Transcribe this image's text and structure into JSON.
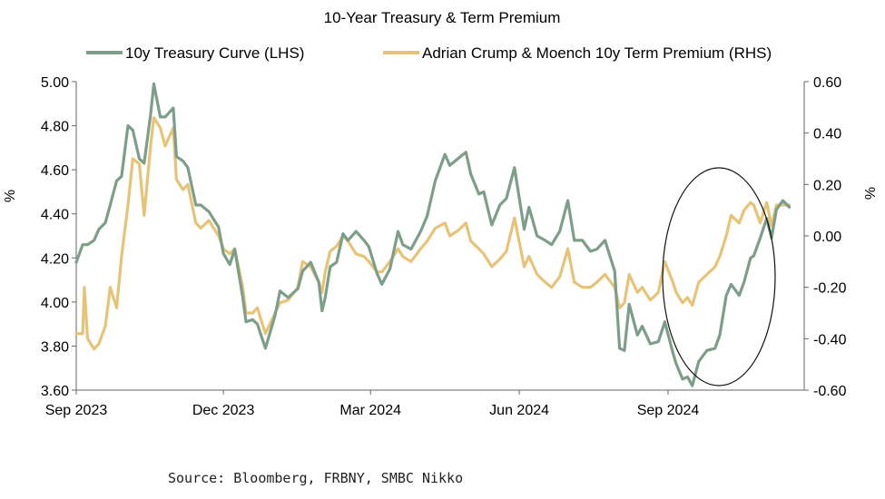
{
  "chart_data": {
    "type": "line",
    "title": "10-Year Treasury & Term Premium",
    "ylabel_left": "%",
    "ylabel_right": "%",
    "ylim_left": [
      3.6,
      5.0
    ],
    "ylim_right": [
      -0.6,
      0.6
    ],
    "yticks_left": [
      "5.00",
      "4.80",
      "4.60",
      "4.40",
      "4.20",
      "4.00",
      "3.80",
      "3.60"
    ],
    "yticks_right": [
      "0.60",
      "0.40",
      "0.20",
      "0.00",
      "-0.20",
      "-0.40",
      "-0.60"
    ],
    "xticks": [
      "Sep 2023",
      "Dec 2023",
      "Mar 2024",
      "Jun 2024",
      "Sep 2024"
    ],
    "legend_position": "top",
    "series": [
      {
        "name": "10y Treasury Curve (LHS)",
        "axis": "left",
        "color": "#7d9e89",
        "points": [
          [
            "2023-09-01",
            4.18
          ],
          [
            "2023-09-05",
            4.26
          ],
          [
            "2023-09-08",
            4.26
          ],
          [
            "2023-09-12",
            4.28
          ],
          [
            "2023-09-15",
            4.33
          ],
          [
            "2023-09-19",
            4.36
          ],
          [
            "2023-09-22",
            4.44
          ],
          [
            "2023-09-26",
            4.55
          ],
          [
            "2023-09-29",
            4.57
          ],
          [
            "2023-10-03",
            4.8
          ],
          [
            "2023-10-06",
            4.78
          ],
          [
            "2023-10-10",
            4.65
          ],
          [
            "2023-10-13",
            4.63
          ],
          [
            "2023-10-17",
            4.85
          ],
          [
            "2023-10-19",
            4.99
          ],
          [
            "2023-10-23",
            4.84
          ],
          [
            "2023-10-26",
            4.84
          ],
          [
            "2023-10-31",
            4.88
          ],
          [
            "2023-11-02",
            4.66
          ],
          [
            "2023-11-06",
            4.64
          ],
          [
            "2023-11-09",
            4.61
          ],
          [
            "2023-11-14",
            4.44
          ],
          [
            "2023-11-17",
            4.44
          ],
          [
            "2023-11-22",
            4.41
          ],
          [
            "2023-11-28",
            4.34
          ],
          [
            "2023-12-01",
            4.22
          ],
          [
            "2023-12-05",
            4.17
          ],
          [
            "2023-12-08",
            4.24
          ],
          [
            "2023-12-13",
            4.02
          ],
          [
            "2023-12-15",
            3.91
          ],
          [
            "2023-12-19",
            3.92
          ],
          [
            "2023-12-22",
            3.9
          ],
          [
            "2023-12-27",
            3.79
          ],
          [
            "2024-01-02",
            3.94
          ],
          [
            "2024-01-05",
            4.05
          ],
          [
            "2024-01-10",
            4.02
          ],
          [
            "2024-01-16",
            4.06
          ],
          [
            "2024-01-19",
            4.14
          ],
          [
            "2024-01-24",
            4.18
          ],
          [
            "2024-01-29",
            4.09
          ],
          [
            "2024-01-31",
            3.96
          ],
          [
            "2024-02-02",
            4.02
          ],
          [
            "2024-02-05",
            4.16
          ],
          [
            "2024-02-09",
            4.18
          ],
          [
            "2024-02-13",
            4.31
          ],
          [
            "2024-02-16",
            4.28
          ],
          [
            "2024-02-21",
            4.32
          ],
          [
            "2024-02-26",
            4.28
          ],
          [
            "2024-02-29",
            4.25
          ],
          [
            "2024-03-05",
            4.13
          ],
          [
            "2024-03-08",
            4.08
          ],
          [
            "2024-03-13",
            4.15
          ],
          [
            "2024-03-18",
            4.32
          ],
          [
            "2024-03-21",
            4.26
          ],
          [
            "2024-03-26",
            4.24
          ],
          [
            "2024-04-01",
            4.32
          ],
          [
            "2024-04-05",
            4.39
          ],
          [
            "2024-04-10",
            4.55
          ],
          [
            "2024-04-16",
            4.67
          ],
          [
            "2024-04-19",
            4.62
          ],
          [
            "2024-04-24",
            4.65
          ],
          [
            "2024-04-29",
            4.68
          ],
          [
            "2024-05-02",
            4.58
          ],
          [
            "2024-05-07",
            4.49
          ],
          [
            "2024-05-10",
            4.5
          ],
          [
            "2024-05-15",
            4.35
          ],
          [
            "2024-05-20",
            4.44
          ],
          [
            "2024-05-24",
            4.47
          ],
          [
            "2024-05-29",
            4.61
          ],
          [
            "2024-06-04",
            4.33
          ],
          [
            "2024-06-07",
            4.43
          ],
          [
            "2024-06-12",
            4.3
          ],
          [
            "2024-06-17",
            4.28
          ],
          [
            "2024-06-21",
            4.26
          ],
          [
            "2024-06-26",
            4.32
          ],
          [
            "2024-07-01",
            4.46
          ],
          [
            "2024-07-05",
            4.28
          ],
          [
            "2024-07-10",
            4.28
          ],
          [
            "2024-07-15",
            4.23
          ],
          [
            "2024-07-19",
            4.24
          ],
          [
            "2024-07-24",
            4.28
          ],
          [
            "2024-07-30",
            4.14
          ],
          [
            "2024-08-02",
            3.79
          ],
          [
            "2024-08-05",
            3.78
          ],
          [
            "2024-08-08",
            3.99
          ],
          [
            "2024-08-13",
            3.85
          ],
          [
            "2024-08-16",
            3.89
          ],
          [
            "2024-08-21",
            3.81
          ],
          [
            "2024-08-26",
            3.82
          ],
          [
            "2024-08-30",
            3.91
          ],
          [
            "2024-09-04",
            3.77
          ],
          [
            "2024-09-06",
            3.72
          ],
          [
            "2024-09-10",
            3.65
          ],
          [
            "2024-09-13",
            3.66
          ],
          [
            "2024-09-16",
            3.62
          ],
          [
            "2024-09-20",
            3.73
          ],
          [
            "2024-09-25",
            3.78
          ],
          [
            "2024-09-30",
            3.79
          ],
          [
            "2024-10-03",
            3.85
          ],
          [
            "2024-10-07",
            4.03
          ],
          [
            "2024-10-10",
            4.08
          ],
          [
            "2024-10-15",
            4.03
          ],
          [
            "2024-10-18",
            4.09
          ],
          [
            "2024-10-22",
            4.2
          ],
          [
            "2024-10-24",
            4.21
          ],
          [
            "2024-10-28",
            4.29
          ],
          [
            "2024-11-01",
            4.38
          ],
          [
            "2024-11-04",
            4.29
          ],
          [
            "2024-11-07",
            4.42
          ],
          [
            "2024-11-11",
            4.46
          ],
          [
            "2024-11-15",
            4.43
          ]
        ]
      },
      {
        "name": "Adrian Crump & Moench 10y Term Premium (RHS)",
        "axis": "right",
        "color": "#e7c377",
        "points": [
          [
            "2023-09-01",
            -0.38
          ],
          [
            "2023-09-05",
            -0.38
          ],
          [
            "2023-09-06",
            -0.2
          ],
          [
            "2023-09-08",
            -0.4
          ],
          [
            "2023-09-12",
            -0.44
          ],
          [
            "2023-09-15",
            -0.42
          ],
          [
            "2023-09-19",
            -0.35
          ],
          [
            "2023-09-22",
            -0.2
          ],
          [
            "2023-09-26",
            -0.28
          ],
          [
            "2023-09-29",
            -0.08
          ],
          [
            "2023-10-03",
            0.12
          ],
          [
            "2023-10-06",
            0.3
          ],
          [
            "2023-10-10",
            0.28
          ],
          [
            "2023-10-13",
            0.08
          ],
          [
            "2023-10-17",
            0.35
          ],
          [
            "2023-10-19",
            0.46
          ],
          [
            "2023-10-23",
            0.42
          ],
          [
            "2023-10-26",
            0.35
          ],
          [
            "2023-10-31",
            0.42
          ],
          [
            "2023-11-02",
            0.22
          ],
          [
            "2023-11-06",
            0.18
          ],
          [
            "2023-11-09",
            0.2
          ],
          [
            "2023-11-14",
            0.05
          ],
          [
            "2023-11-17",
            0.03
          ],
          [
            "2023-11-22",
            0.06
          ],
          [
            "2023-11-28",
            0.0
          ],
          [
            "2023-12-01",
            -0.05
          ],
          [
            "2023-12-05",
            -0.07
          ],
          [
            "2023-12-08",
            -0.05
          ],
          [
            "2023-12-13",
            -0.2
          ],
          [
            "2023-12-15",
            -0.3
          ],
          [
            "2023-12-19",
            -0.3
          ],
          [
            "2023-12-22",
            -0.28
          ],
          [
            "2023-12-27",
            -0.38
          ],
          [
            "2024-01-02",
            -0.3
          ],
          [
            "2024-01-05",
            -0.26
          ],
          [
            "2024-01-10",
            -0.25
          ],
          [
            "2024-01-16",
            -0.2
          ],
          [
            "2024-01-19",
            -0.1
          ],
          [
            "2024-01-24",
            -0.12
          ],
          [
            "2024-01-29",
            -0.18
          ],
          [
            "2024-01-31",
            -0.22
          ],
          [
            "2024-02-02",
            -0.14
          ],
          [
            "2024-02-05",
            -0.06
          ],
          [
            "2024-02-09",
            -0.04
          ],
          [
            "2024-02-13",
            0.0
          ],
          [
            "2024-02-16",
            -0.02
          ],
          [
            "2024-02-21",
            -0.07
          ],
          [
            "2024-02-26",
            -0.08
          ],
          [
            "2024-02-29",
            -0.1
          ],
          [
            "2024-03-05",
            -0.14
          ],
          [
            "2024-03-08",
            -0.14
          ],
          [
            "2024-03-13",
            -0.1
          ],
          [
            "2024-03-18",
            -0.05
          ],
          [
            "2024-03-21",
            -0.08
          ],
          [
            "2024-03-26",
            -0.1
          ],
          [
            "2024-04-01",
            -0.05
          ],
          [
            "2024-04-05",
            -0.02
          ],
          [
            "2024-04-10",
            0.03
          ],
          [
            "2024-04-16",
            0.05
          ],
          [
            "2024-04-19",
            0.0
          ],
          [
            "2024-04-24",
            0.02
          ],
          [
            "2024-04-29",
            0.05
          ],
          [
            "2024-05-02",
            -0.02
          ],
          [
            "2024-05-07",
            -0.05
          ],
          [
            "2024-05-10",
            -0.07
          ],
          [
            "2024-05-15",
            -0.12
          ],
          [
            "2024-05-20",
            -0.09
          ],
          [
            "2024-05-24",
            -0.06
          ],
          [
            "2024-05-29",
            0.07
          ],
          [
            "2024-06-04",
            -0.12
          ],
          [
            "2024-06-07",
            -0.08
          ],
          [
            "2024-06-12",
            -0.15
          ],
          [
            "2024-06-17",
            -0.18
          ],
          [
            "2024-06-21",
            -0.2
          ],
          [
            "2024-06-26",
            -0.16
          ],
          [
            "2024-07-01",
            -0.05
          ],
          [
            "2024-07-05",
            -0.18
          ],
          [
            "2024-07-10",
            -0.2
          ],
          [
            "2024-07-15",
            -0.2
          ],
          [
            "2024-07-19",
            -0.18
          ],
          [
            "2024-07-24",
            -0.15
          ],
          [
            "2024-07-30",
            -0.2
          ],
          [
            "2024-08-02",
            -0.28
          ],
          [
            "2024-08-05",
            -0.26
          ],
          [
            "2024-08-08",
            -0.15
          ],
          [
            "2024-08-13",
            -0.22
          ],
          [
            "2024-08-16",
            -0.2
          ],
          [
            "2024-08-21",
            -0.25
          ],
          [
            "2024-08-26",
            -0.22
          ],
          [
            "2024-08-30",
            -0.1
          ],
          [
            "2024-09-04",
            -0.18
          ],
          [
            "2024-09-06",
            -0.22
          ],
          [
            "2024-09-10",
            -0.26
          ],
          [
            "2024-09-13",
            -0.24
          ],
          [
            "2024-09-16",
            -0.27
          ],
          [
            "2024-09-20",
            -0.18
          ],
          [
            "2024-09-25",
            -0.15
          ],
          [
            "2024-09-30",
            -0.12
          ],
          [
            "2024-10-03",
            -0.08
          ],
          [
            "2024-10-07",
            0.0
          ],
          [
            "2024-10-10",
            0.08
          ],
          [
            "2024-10-15",
            0.05
          ],
          [
            "2024-10-18",
            0.1
          ],
          [
            "2024-10-22",
            0.13
          ],
          [
            "2024-10-24",
            0.12
          ],
          [
            "2024-10-28",
            0.05
          ],
          [
            "2024-11-01",
            0.13
          ],
          [
            "2024-11-04",
            0.04
          ],
          [
            "2024-11-07",
            0.12
          ],
          [
            "2024-11-11",
            0.12
          ],
          [
            "2024-11-15",
            0.12
          ]
        ]
      }
    ],
    "annotations": [
      {
        "type": "ellipse",
        "around": "Sep-Nov 2024",
        "color": "#111111"
      }
    ],
    "source": "Source: Bloomberg, FRBNY, SMBC Nikko"
  }
}
